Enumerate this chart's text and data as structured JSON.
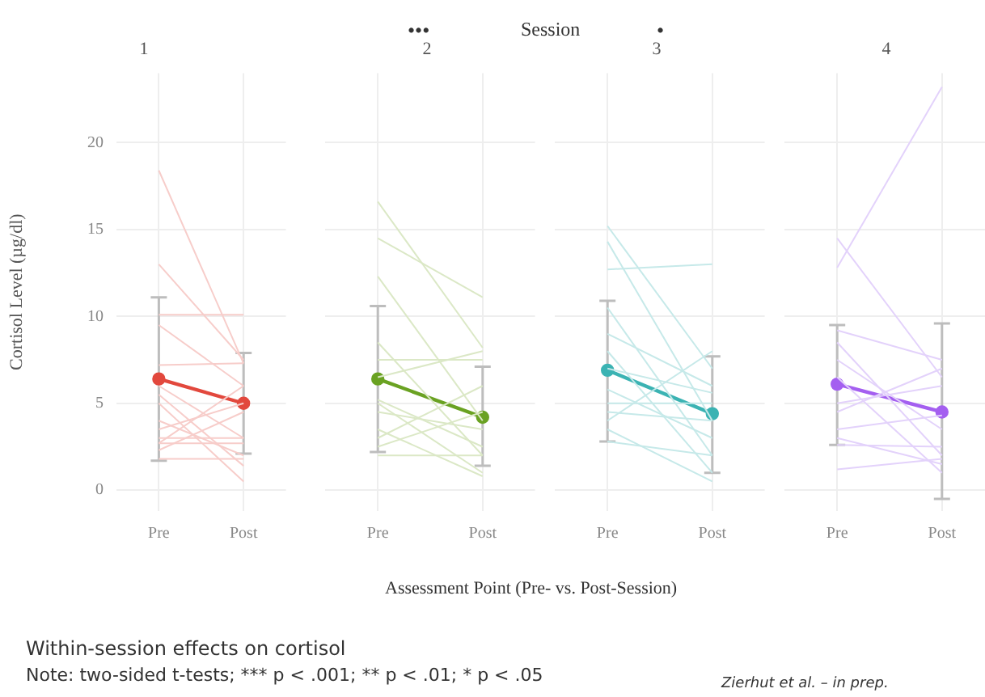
{
  "chart_data": [
    {
      "type": "line",
      "title": "1",
      "ylabel": "Cortisol Level (µg/dl)",
      "categories": [
        "Pre",
        "Post"
      ],
      "ylim": [
        -1.2,
        24
      ],
      "yticks": [
        0,
        5,
        10,
        15,
        20
      ],
      "grid": true,
      "legend": false,
      "marker": "circle",
      "tick_labels": "xy",
      "series": [
        {
          "color": "#f7cdca",
          "marker": "none",
          "values": [
            18.4,
            7.3
          ]
        },
        {
          "color": "#f7cdca",
          "marker": "none",
          "values": [
            13,
            7.5
          ]
        },
        {
          "color": "#f7cdca",
          "marker": "none",
          "values": [
            10.1,
            10.1
          ]
        },
        {
          "color": "#f7cdca",
          "marker": "none",
          "values": [
            9.5,
            6
          ]
        },
        {
          "color": "#f7cdca",
          "marker": "none",
          "values": [
            7.2,
            7.3
          ]
        },
        {
          "color": "#f7cdca",
          "marker": "none",
          "values": [
            6,
            3
          ]
        },
        {
          "color": "#f7cdca",
          "marker": "none",
          "values": [
            5.5,
            1.4
          ]
        },
        {
          "color": "#f7cdca",
          "marker": "none",
          "values": [
            5,
            0.5
          ]
        },
        {
          "color": "#f7cdca",
          "marker": "none",
          "values": [
            3.5,
            5
          ]
        },
        {
          "color": "#f7cdca",
          "marker": "none",
          "values": [
            3,
            3
          ]
        },
        {
          "color": "#f7cdca",
          "marker": "none",
          "values": [
            2.7,
            6
          ]
        },
        {
          "color": "#f7cdca",
          "marker": "none",
          "values": [
            2.7,
            2.7
          ]
        },
        {
          "color": "#f7cdca",
          "marker": "none",
          "values": [
            1.8,
            1.8
          ]
        },
        {
          "color": "#f7cdca",
          "marker": "none",
          "values": [
            2.3,
            4.5
          ]
        },
        {
          "color": "#f7cdca",
          "marker": "none",
          "values": [
            4,
            2
          ]
        },
        {
          "color": "#e2483d",
          "values": [
            6.4,
            5.0
          ],
          "errors": [
            [
              1.7,
              11.1
            ],
            [
              2.1,
              7.9
            ]
          ]
        }
      ]
    },
    {
      "type": "line",
      "title": "2",
      "categories": [
        "Pre",
        "Post"
      ],
      "ylim": [
        -1.2,
        24
      ],
      "yticks": [
        0,
        5,
        10,
        15,
        20
      ],
      "grid": true,
      "legend": false,
      "marker": "circle",
      "tick_labels": "x",
      "series": [
        {
          "color": "#dbe8c6",
          "marker": "none",
          "values": [
            16.6,
            8.2
          ]
        },
        {
          "color": "#dbe8c6",
          "marker": "none",
          "values": [
            14.5,
            11.1
          ]
        },
        {
          "color": "#dbe8c6",
          "marker": "none",
          "values": [
            12.3,
            4
          ]
        },
        {
          "color": "#dbe8c6",
          "marker": "none",
          "values": [
            8.5,
            2
          ]
        },
        {
          "color": "#dbe8c6",
          "marker": "none",
          "values": [
            7.5,
            7.5
          ]
        },
        {
          "color": "#dbe8c6",
          "marker": "none",
          "values": [
            6.5,
            8
          ]
        },
        {
          "color": "#dbe8c6",
          "marker": "none",
          "values": [
            5.2,
            2.5
          ]
        },
        {
          "color": "#dbe8c6",
          "marker": "none",
          "values": [
            5,
            1
          ]
        },
        {
          "color": "#dbe8c6",
          "marker": "none",
          "values": [
            4.5,
            3.5
          ]
        },
        {
          "color": "#dbe8c6",
          "marker": "none",
          "values": [
            3.5,
            0.8
          ]
        },
        {
          "color": "#dbe8c6",
          "marker": "none",
          "values": [
            2.5,
            4.5
          ]
        },
        {
          "color": "#dbe8c6",
          "marker": "none",
          "values": [
            2,
            2
          ]
        },
        {
          "color": "#dbe8c6",
          "marker": "none",
          "values": [
            3,
            6
          ]
        },
        {
          "color": "#6aa222",
          "values": [
            6.4,
            4.2
          ],
          "errors": [
            [
              2.2,
              10.6
            ],
            [
              1.4,
              7.1
            ]
          ]
        }
      ]
    },
    {
      "type": "line",
      "title": "3",
      "categories": [
        "Pre",
        "Post"
      ],
      "ylim": [
        -1.2,
        24
      ],
      "yticks": [
        0,
        5,
        10,
        15,
        20
      ],
      "grid": true,
      "legend": false,
      "marker": "circle",
      "tick_labels": "x",
      "series": [
        {
          "color": "#c6e9e9",
          "marker": "none",
          "values": [
            15.2,
            7
          ]
        },
        {
          "color": "#c6e9e9",
          "marker": "none",
          "values": [
            14.3,
            4
          ]
        },
        {
          "color": "#c6e9e9",
          "marker": "none",
          "values": [
            12.7,
            13
          ]
        },
        {
          "color": "#c6e9e9",
          "marker": "none",
          "values": [
            10.5,
            2
          ]
        },
        {
          "color": "#c6e9e9",
          "marker": "none",
          "values": [
            9,
            6
          ]
        },
        {
          "color": "#c6e9e9",
          "marker": "none",
          "values": [
            8,
            1
          ]
        },
        {
          "color": "#c6e9e9",
          "marker": "none",
          "values": [
            7,
            5.6
          ]
        },
        {
          "color": "#c6e9e9",
          "marker": "none",
          "values": [
            5.8,
            3
          ]
        },
        {
          "color": "#c6e9e9",
          "marker": "none",
          "values": [
            5,
            5
          ]
        },
        {
          "color": "#c6e9e9",
          "marker": "none",
          "values": [
            4,
            8
          ]
        },
        {
          "color": "#c6e9e9",
          "marker": "none",
          "values": [
            3.5,
            0.5
          ]
        },
        {
          "color": "#c6e9e9",
          "marker": "none",
          "values": [
            2.8,
            2
          ]
        },
        {
          "color": "#c6e9e9",
          "marker": "none",
          "values": [
            4.5,
            4
          ]
        },
        {
          "color": "#3bb3b3",
          "values": [
            6.9,
            4.4
          ],
          "errors": [
            [
              2.8,
              10.9
            ],
            [
              1.0,
              7.7
            ]
          ]
        }
      ]
    },
    {
      "type": "line",
      "title": "4",
      "categories": [
        "Pre",
        "Post"
      ],
      "ylim": [
        -1.2,
        24
      ],
      "yticks": [
        0,
        5,
        10,
        15,
        20
      ],
      "grid": true,
      "legend": false,
      "marker": "circle",
      "tick_labels": "x",
      "series": [
        {
          "color": "#e3d2fb",
          "marker": "none",
          "values": [
            12.8,
            23.2
          ]
        },
        {
          "color": "#e3d2fb",
          "marker": "none",
          "values": [
            14.5,
            6.5
          ]
        },
        {
          "color": "#e3d2fb",
          "marker": "none",
          "values": [
            9.2,
            7.5
          ]
        },
        {
          "color": "#e3d2fb",
          "marker": "none",
          "values": [
            8.5,
            2
          ]
        },
        {
          "color": "#e3d2fb",
          "marker": "none",
          "values": [
            7.5,
            3.5
          ]
        },
        {
          "color": "#e3d2fb",
          "marker": "none",
          "values": [
            6.5,
            1
          ]
        },
        {
          "color": "#e3d2fb",
          "marker": "none",
          "values": [
            5,
            6
          ]
        },
        {
          "color": "#e3d2fb",
          "marker": "none",
          "values": [
            4.5,
            7
          ]
        },
        {
          "color": "#e3d2fb",
          "marker": "none",
          "values": [
            3.5,
            4.3
          ]
        },
        {
          "color": "#e3d2fb",
          "marker": "none",
          "values": [
            2.6,
            2.5
          ]
        },
        {
          "color": "#e3d2fb",
          "marker": "none",
          "values": [
            1.2,
            1.8
          ]
        },
        {
          "color": "#e3d2fb",
          "marker": "none",
          "values": [
            3,
            1.5
          ]
        },
        {
          "color": "#a45ff0",
          "values": [
            6.1,
            4.5
          ],
          "errors": [
            [
              2.6,
              9.5
            ],
            [
              -0.5,
              9.6
            ]
          ]
        }
      ]
    },
    {
      "type": "other",
      "title": "Within-session effects on cortisol",
      "annotations": [
        "•••",
        "Session",
        "•",
        "Assessment Point (Pre- vs. Post-Session)",
        "Note: two-sided t-tests; *** p < .001; ** p < .01; * p < .05",
        "Zierhut et al. – in prep."
      ]
    }
  ]
}
